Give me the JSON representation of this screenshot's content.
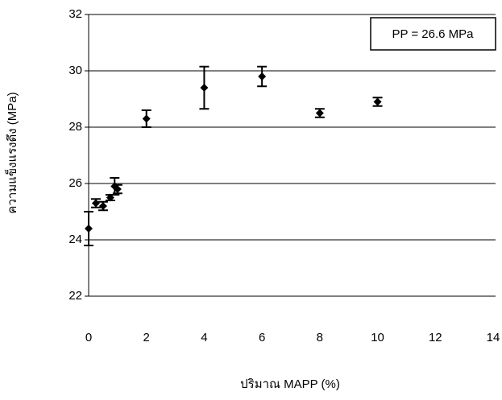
{
  "chart_data": {
    "type": "scatter",
    "x_label": "ปริมาณ MAPP (%)",
    "y_label": "ความแข็งแรงดึง (MPa)",
    "annotation": "PP = 26.6 MPa",
    "xlim": [
      0,
      14
    ],
    "xticks": [
      0,
      2,
      4,
      6,
      8,
      10,
      12,
      14
    ],
    "ylim": [
      22,
      32
    ],
    "yticks": [
      22,
      24,
      26,
      28,
      30,
      32
    ],
    "grid": true,
    "series": [
      {
        "color": "#000000",
        "x": [
          0,
          0.25,
          0.5,
          0.75,
          0.9,
          1,
          2,
          4,
          6,
          8,
          10
        ],
        "values": [
          24.4,
          25.3,
          25.2,
          25.5,
          25.9,
          25.8,
          28.3,
          29.4,
          29.8,
          28.5,
          28.9
        ],
        "errors": [
          0.6,
          0.15,
          0.15,
          0.1,
          0.3,
          0.15,
          0.3,
          0.75,
          0.35,
          0.15,
          0.15
        ]
      }
    ]
  }
}
